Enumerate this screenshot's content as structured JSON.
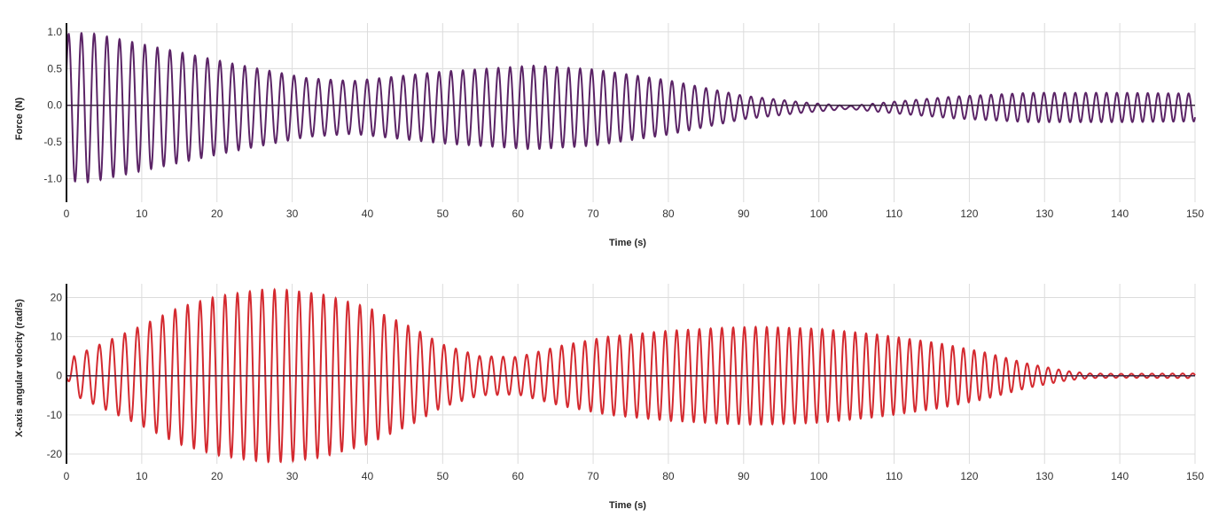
{
  "chart_data": [
    {
      "type": "line",
      "title": "",
      "xlabel": "Time (s)",
      "ylabel": "Force (N)",
      "xlim": [
        0,
        150
      ],
      "ylim": [
        -1.32,
        1.12
      ],
      "x_ticks": [
        "0",
        "10",
        "20",
        "30",
        "40",
        "50",
        "60",
        "70",
        "80",
        "90",
        "100",
        "110",
        "120",
        "130",
        "140",
        "150"
      ],
      "y_ticks": [
        {
          "value": 1.0,
          "label": "1.0"
        },
        {
          "value": 0.5,
          "label": "0.5"
        },
        {
          "value": 0.0,
          "label": "0.0"
        },
        {
          "value": -0.5,
          "label": "-0.5"
        },
        {
          "value": -1.0,
          "label": "-1.0"
        }
      ],
      "grid": true,
      "series": [
        {
          "name": "Force",
          "color": "#5b2466",
          "offset": -0.03,
          "phase": 0.5,
          "period_start": 1.7,
          "period_end": 1.35,
          "envelope": [
            [
              0,
              1.0
            ],
            [
              3,
              1.02
            ],
            [
              12,
              0.82
            ],
            [
              22,
              0.6
            ],
            [
              32,
              0.4
            ],
            [
              38,
              0.36
            ],
            [
              50,
              0.49
            ],
            [
              62,
              0.57
            ],
            [
              70,
              0.52
            ],
            [
              80,
              0.37
            ],
            [
              90,
              0.16
            ],
            [
              98,
              0.07
            ],
            [
              104,
              0.02
            ],
            [
              110,
              0.08
            ],
            [
              118,
              0.15
            ],
            [
              128,
              0.2
            ],
            [
              140,
              0.2
            ],
            [
              150,
              0.19
            ]
          ]
        }
      ]
    },
    {
      "type": "line",
      "title": "",
      "xlabel": "Time (s)",
      "ylabel": "X-axis angular velocity (rad/s)",
      "xlim": [
        0,
        150
      ],
      "ylim": [
        -22.5,
        23.5
      ],
      "x_ticks": [
        "0",
        "10",
        "20",
        "30",
        "40",
        "50",
        "60",
        "70",
        "80",
        "90",
        "100",
        "110",
        "120",
        "130",
        "140",
        "150"
      ],
      "y_ticks": [
        {
          "value": 20,
          "label": "20"
        },
        {
          "value": 10,
          "label": "10"
        },
        {
          "value": 0,
          "label": "0"
        },
        {
          "value": -10,
          "label": "-10"
        },
        {
          "value": -20,
          "label": "-20"
        }
      ],
      "grid": true,
      "series": [
        {
          "name": "X-axis angular velocity",
          "color": "#d42a30",
          "offset": 0,
          "phase": 4.2,
          "period_start": 1.7,
          "period_end": 1.35,
          "envelope": [
            [
              0,
              0.3
            ],
            [
              1,
              5
            ],
            [
              5,
              8.5
            ],
            [
              10,
              12.8
            ],
            [
              15,
              17.5
            ],
            [
              20,
              20.3
            ],
            [
              26,
              22
            ],
            [
              29,
              22
            ],
            [
              34,
              20.8
            ],
            [
              40,
              17.5
            ],
            [
              46,
              12.3
            ],
            [
              50,
              8
            ],
            [
              55,
              5
            ],
            [
              60,
              4.8
            ],
            [
              66,
              7.8
            ],
            [
              72,
              10
            ],
            [
              80,
              11.5
            ],
            [
              88,
              12.3
            ],
            [
              92,
              12.5
            ],
            [
              100,
              12
            ],
            [
              108,
              10.5
            ],
            [
              116,
              8.3
            ],
            [
              122,
              6
            ],
            [
              128,
              3
            ],
            [
              133,
              1.2
            ],
            [
              136,
              0.6
            ],
            [
              140,
              0.5
            ],
            [
              150,
              0.6
            ]
          ]
        }
      ]
    }
  ]
}
